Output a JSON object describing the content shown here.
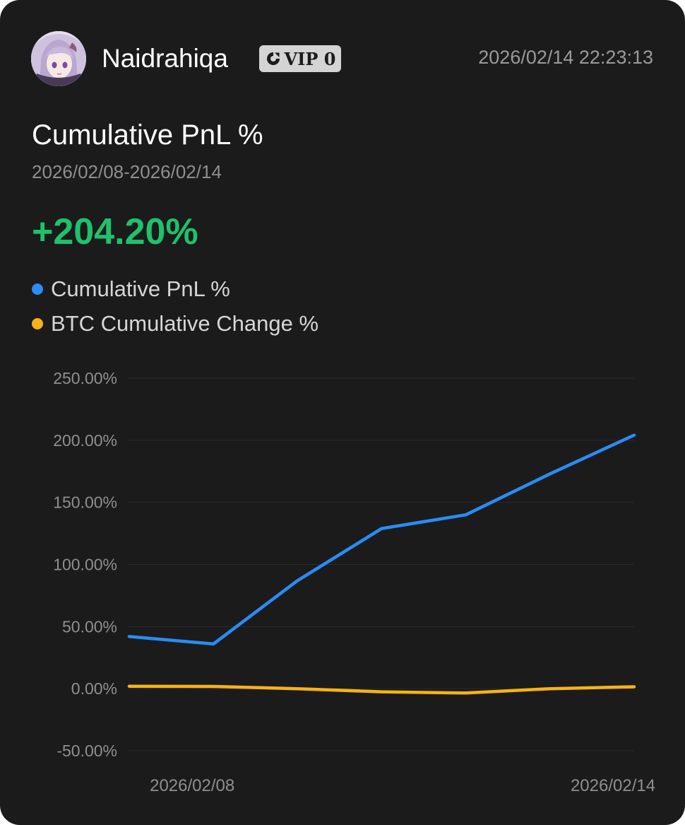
{
  "header": {
    "username": "Naidrahiqa",
    "vip_label": "VIP 0",
    "timestamp": "2026/02/14 22:23:13"
  },
  "summary": {
    "title": "Cumulative PnL %",
    "date_range": "2026/02/08-2026/02/14",
    "pnl_value": "+204.20%"
  },
  "legend": [
    {
      "label": "Cumulative PnL %",
      "color": "#2a8cf5"
    },
    {
      "label": "BTC Cumulative Change %",
      "color": "#f7b217"
    }
  ],
  "icons": {
    "vip": "vip-badge-icon",
    "avatar": "anime-girl-avatar"
  },
  "colors": {
    "background": "#1b1b1b",
    "positive": "#1fc16b",
    "pnl_line": "#2a8cf5",
    "btc_line": "#f7b217",
    "gridline": "#2a2a2a",
    "muted_text": "#8f8f8f"
  },
  "chart_data": {
    "type": "line",
    "x": [
      "2026/02/08",
      "2026/02/09",
      "2026/02/10",
      "2026/02/11",
      "2026/02/12",
      "2026/02/13",
      "2026/02/14"
    ],
    "xtick_labels": [
      "2026/02/08",
      "2026/02/14"
    ],
    "xtick_label_positions": [
      1,
      6
    ],
    "series": [
      {
        "name": "Cumulative PnL %",
        "color": "#2a8cf5",
        "values": [
          42,
          36,
          87,
          129,
          140,
          173,
          204.2
        ]
      },
      {
        "name": "BTC Cumulative Change %",
        "color": "#f7b217",
        "values": [
          2,
          1.8,
          0,
          -2.5,
          -3.5,
          0,
          1.5
        ]
      }
    ],
    "yticks": [
      250,
      200,
      150,
      100,
      50,
      0,
      -50
    ],
    "ytick_labels": [
      "250.00%",
      "200.00%",
      "150.00%",
      "100.00%",
      "50.00%",
      "0.00%",
      "-50.00%"
    ],
    "ylim": [
      -50,
      250
    ],
    "grid": true,
    "title": "Cumulative PnL %",
    "xlabel": "",
    "ylabel": ""
  }
}
